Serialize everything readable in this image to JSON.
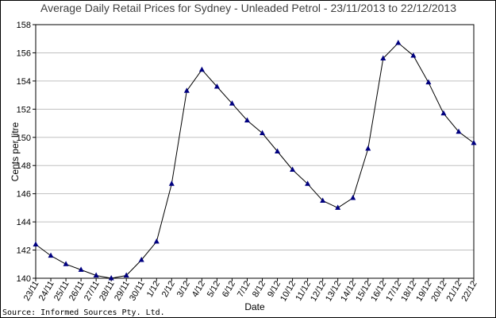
{
  "chart_data": {
    "type": "line",
    "title": "Average Daily Retail Prices for Sydney - Unleaded Petrol - 23/11/2013 to 22/12/2013",
    "xlabel": "Date",
    "ylabel": "Cents per litre",
    "ylim": [
      140,
      158
    ],
    "yticks": [
      140,
      142,
      144,
      146,
      148,
      150,
      152,
      154,
      156,
      158
    ],
    "grid": true,
    "categories": [
      "23/11",
      "24/11",
      "25/11",
      "26/11",
      "27/11",
      "28/11",
      "29/11",
      "30/11",
      "1/12",
      "2/12",
      "3/12",
      "4/12",
      "5/12",
      "6/12",
      "7/12",
      "8/12",
      "9/12",
      "10/12",
      "11/12",
      "12/12",
      "13/12",
      "14/12",
      "15/12",
      "16/12",
      "17/12",
      "18/12",
      "19/12",
      "20/12",
      "21/12",
      "22/12"
    ],
    "series": [
      {
        "values": [
          142.4,
          141.6,
          141.0,
          140.6,
          140.2,
          140.0,
          140.2,
          141.3,
          142.6,
          146.7,
          153.3,
          154.8,
          153.6,
          152.4,
          151.2,
          150.3,
          149.0,
          147.7,
          146.7,
          145.5,
          145.0,
          145.7,
          149.2,
          155.6,
          156.7,
          155.8,
          153.9,
          151.7,
          150.4,
          149.6
        ]
      }
    ],
    "colors": {
      "line": "#000000",
      "marker": "#000080",
      "grid": "#c0c0c0"
    }
  },
  "source_text": "Source: Informed Sources Pty. Ltd."
}
